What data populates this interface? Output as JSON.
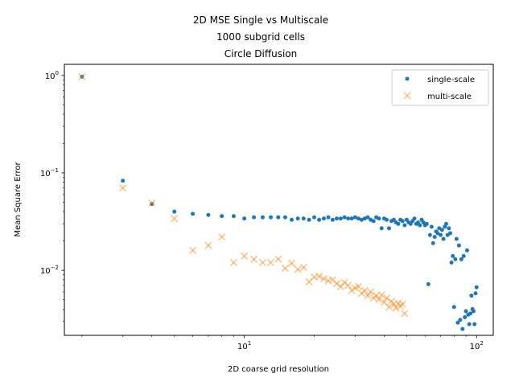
{
  "chart_data": {
    "type": "scatter",
    "title_lines": [
      "2D MSE Single vs Multiscale",
      "1000 subgrid cells",
      "Circle Diffusion"
    ],
    "xlabel": "2D coarse grid resolution",
    "ylabel": "Mean Square Error",
    "xscale": "log",
    "yscale": "log",
    "xlim": [
      1.68,
      118
    ],
    "ylim": [
      0.00215,
      1.3
    ],
    "xticks": [
      {
        "value": 10,
        "label": "10",
        "exp": "1"
      },
      {
        "value": 100,
        "label": "10",
        "exp": "2"
      }
    ],
    "yticks": [
      {
        "value": 0.01,
        "label": "10",
        "exp": "−2"
      },
      {
        "value": 0.1,
        "label": "10",
        "exp": "−1"
      },
      {
        "value": 1,
        "label": "10",
        "exp": "0"
      }
    ],
    "grid": false,
    "legend_position": "top-right",
    "series": [
      {
        "name": "single-scale",
        "marker": "circle",
        "color": "#1f77b4",
        "points": [
          [
            2,
            0.97
          ],
          [
            3,
            0.083
          ],
          [
            4,
            0.048
          ],
          [
            5,
            0.04
          ],
          [
            6,
            0.038
          ],
          [
            7,
            0.037
          ],
          [
            8,
            0.036
          ],
          [
            9,
            0.036
          ],
          [
            10,
            0.034
          ],
          [
            11,
            0.035
          ],
          [
            12,
            0.035
          ],
          [
            13,
            0.035
          ],
          [
            14,
            0.035
          ],
          [
            15,
            0.035
          ],
          [
            16,
            0.033
          ],
          [
            17,
            0.034
          ],
          [
            18,
            0.034
          ],
          [
            19,
            0.033
          ],
          [
            20,
            0.035
          ],
          [
            21,
            0.033
          ],
          [
            22,
            0.034
          ],
          [
            23,
            0.035
          ],
          [
            24,
            0.033
          ],
          [
            25,
            0.034
          ],
          [
            26,
            0.034
          ],
          [
            27,
            0.035
          ],
          [
            28,
            0.034
          ],
          [
            29,
            0.034
          ],
          [
            30,
            0.035
          ],
          [
            31,
            0.034
          ],
          [
            32,
            0.033
          ],
          [
            33,
            0.034
          ],
          [
            34,
            0.035
          ],
          [
            35,
            0.033
          ],
          [
            36,
            0.032
          ],
          [
            37,
            0.035
          ],
          [
            38,
            0.034
          ],
          [
            39,
            0.027
          ],
          [
            40,
            0.034
          ],
          [
            41,
            0.033
          ],
          [
            42,
            0.027
          ],
          [
            43,
            0.032
          ],
          [
            44,
            0.033
          ],
          [
            45,
            0.031
          ],
          [
            46,
            0.03
          ],
          [
            47,
            0.033
          ],
          [
            48,
            0.032
          ],
          [
            49,
            0.029
          ],
          [
            50,
            0.033
          ],
          [
            51,
            0.031
          ],
          [
            52,
            0.03
          ],
          [
            53,
            0.032
          ],
          [
            54,
            0.034
          ],
          [
            55,
            0.03
          ],
          [
            56,
            0.031
          ],
          [
            57,
            0.029
          ],
          [
            58,
            0.033
          ],
          [
            59,
            0.031
          ],
          [
            60,
            0.029
          ],
          [
            61,
            0.03
          ],
          [
            62,
            0.0072
          ],
          [
            63,
            0.023
          ],
          [
            64,
            0.028
          ],
          [
            65,
            0.019
          ],
          [
            66,
            0.022
          ],
          [
            67,
            0.025
          ],
          [
            68,
            0.024
          ],
          [
            69,
            0.027
          ],
          [
            70,
            0.023
          ],
          [
            71,
            0.026
          ],
          [
            72,
            0.021
          ],
          [
            73,
            0.028
          ],
          [
            74,
            0.03
          ],
          [
            75,
            0.023
          ],
          [
            76,
            0.027
          ],
          [
            77,
            0.024
          ],
          [
            78,
            0.012
          ],
          [
            79,
            0.014
          ],
          [
            80,
            0.0042
          ],
          [
            81,
            0.013
          ],
          [
            82,
            0.021
          ],
          [
            83,
            0.0029
          ],
          [
            84,
            0.018
          ],
          [
            85,
            0.0031
          ],
          [
            86,
            0.013
          ],
          [
            87,
            0.0025
          ],
          [
            88,
            0.014
          ],
          [
            89,
            0.0033
          ],
          [
            90,
            0.0038
          ],
          [
            91,
            0.016
          ],
          [
            92,
            0.0035
          ],
          [
            93,
            0.0028
          ],
          [
            94,
            0.0036
          ],
          [
            95,
            0.0055
          ],
          [
            96,
            0.004
          ],
          [
            97,
            0.0038
          ],
          [
            98,
            0.0028
          ],
          [
            99,
            0.0058
          ],
          [
            100,
            0.0067
          ]
        ]
      },
      {
        "name": "multi-scale",
        "marker": "x",
        "color": "#ff7f0e",
        "points": [
          [
            2,
            0.97
          ],
          [
            3,
            0.07
          ],
          [
            4,
            0.049
          ],
          [
            5,
            0.034
          ],
          [
            6,
            0.016
          ],
          [
            7,
            0.018
          ],
          [
            8,
            0.022
          ],
          [
            9,
            0.012
          ],
          [
            10,
            0.014
          ],
          [
            11,
            0.013
          ],
          [
            12,
            0.012
          ],
          [
            13,
            0.012
          ],
          [
            14,
            0.013
          ],
          [
            15,
            0.0105
          ],
          [
            16,
            0.0118
          ],
          [
            17,
            0.0102
          ],
          [
            18,
            0.0107
          ],
          [
            19,
            0.0076
          ],
          [
            20,
            0.0085
          ],
          [
            21,
            0.0087
          ],
          [
            22,
            0.0082
          ],
          [
            23,
            0.0078
          ],
          [
            24,
            0.008
          ],
          [
            25,
            0.0073
          ],
          [
            26,
            0.0068
          ],
          [
            27,
            0.0075
          ],
          [
            28,
            0.007
          ],
          [
            29,
            0.0062
          ],
          [
            30,
            0.0066
          ],
          [
            31,
            0.0068
          ],
          [
            32,
            0.0058
          ],
          [
            33,
            0.0062
          ],
          [
            34,
            0.0055
          ],
          [
            35,
            0.006
          ],
          [
            36,
            0.0052
          ],
          [
            37,
            0.0055
          ],
          [
            38,
            0.005
          ],
          [
            39,
            0.0056
          ],
          [
            40,
            0.0047
          ],
          [
            41,
            0.0052
          ],
          [
            42,
            0.0042
          ],
          [
            43,
            0.0048
          ],
          [
            44,
            0.0045
          ],
          [
            45,
            0.0041
          ],
          [
            46,
            0.0046
          ],
          [
            47,
            0.0043
          ],
          [
            48,
            0.0045
          ],
          [
            49,
            0.0036
          ]
        ]
      }
    ]
  }
}
